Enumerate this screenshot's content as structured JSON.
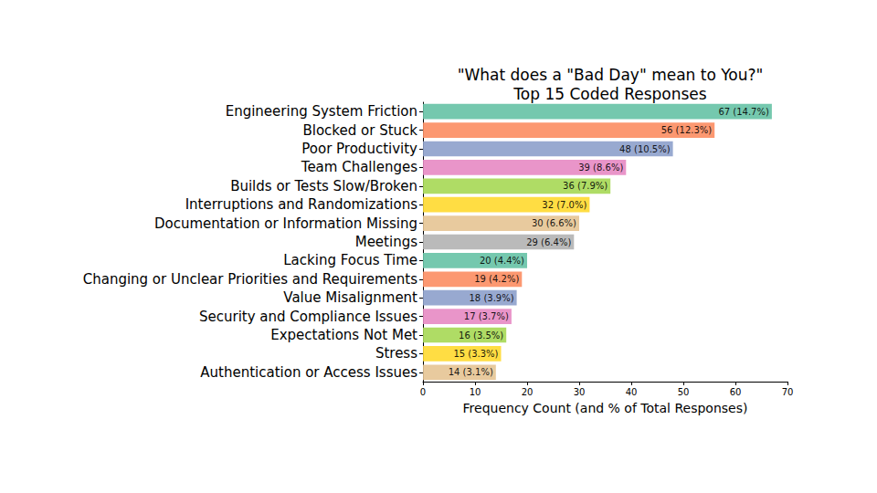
{
  "chart_data": {
    "type": "bar",
    "orientation": "horizontal",
    "title": "\"What does a \"Bad Day\" mean to You?\"\nTop 15 Coded Responses",
    "x_label": "Frequency Count (and % of Total Responses)",
    "categories": [
      "Engineering System Friction",
      "Blocked or Stuck",
      "Poor Productivity",
      "Team Challenges",
      "Builds or Tests Slow/Broken",
      "Interruptions and Randomizations",
      "Documentation or Information Missing",
      "Meetings",
      "Lacking Focus Time",
      "Changing or Unclear Priorities and Requirements",
      "Value Misalignment",
      "Security and Compliance Issues",
      "Expectations Not Met",
      "Stress",
      "Authentication or Access Issues"
    ],
    "values": [
      67,
      56,
      48,
      39,
      36,
      32,
      30,
      29,
      20,
      19,
      18,
      17,
      16,
      15,
      14
    ],
    "value_labels": [
      "67 (14.7%)",
      "56 (12.3%)",
      "48 (10.5%)",
      "39 (8.6%)",
      "36 (7.9%)",
      "32 (7.0%)",
      "30 (6.6%)",
      "29 (6.4%)",
      "20 (4.4%)",
      "19 (4.2%)",
      "18 (3.9%)",
      "17 (3.7%)",
      "16 (3.5%)",
      "15 (3.3%)",
      "14 (3.1%)"
    ],
    "colors": [
      "#66c2a5",
      "#fc8d62",
      "#8da0cb",
      "#e78ac3",
      "#a6d854",
      "#ffd92f",
      "#e5c494",
      "#b3b3b3",
      "#66c2a5",
      "#fc8d62",
      "#8da0cb",
      "#e78ac3",
      "#a6d854",
      "#ffd92f",
      "#e5c494"
    ],
    "xlim": [
      0,
      70
    ],
    "xticks": [
      0,
      10,
      20,
      30,
      40,
      50,
      60,
      70
    ],
    "data_labels": true,
    "grid": false
  }
}
